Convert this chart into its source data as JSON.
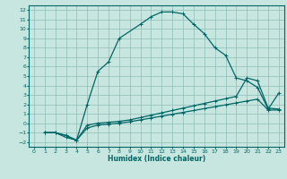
{
  "title": "",
  "xlabel": "Humidex (Indice chaleur)",
  "bg_color": "#c8e6e0",
  "grid_color": "#8bbdb6",
  "line_color": "#006666",
  "xlim": [
    -0.5,
    23.5
  ],
  "ylim": [
    -2.5,
    12.5
  ],
  "xticks": [
    0,
    1,
    2,
    3,
    4,
    5,
    6,
    7,
    8,
    9,
    10,
    11,
    12,
    13,
    14,
    15,
    16,
    17,
    18,
    19,
    20,
    21,
    22,
    23
  ],
  "yticks": [
    -2,
    -1,
    0,
    1,
    2,
    3,
    4,
    5,
    6,
    7,
    8,
    9,
    10,
    11,
    12
  ],
  "curve1_x": [
    1,
    2,
    3,
    4,
    5,
    6,
    7,
    8,
    10,
    11,
    12,
    13,
    14,
    15,
    16,
    17,
    18,
    19,
    20,
    21,
    22,
    23
  ],
  "curve1_y": [
    -1,
    -1,
    -1.5,
    -1.8,
    2,
    5.5,
    6.5,
    9.0,
    10.5,
    11.3,
    11.8,
    11.8,
    11.6,
    10.5,
    9.5,
    8.0,
    7.2,
    4.8,
    4.5,
    3.8,
    1.5,
    3.2
  ],
  "curve2_x": [
    1,
    2,
    3,
    4,
    5,
    6,
    7,
    8,
    9,
    10,
    11,
    12,
    13,
    14,
    15,
    16,
    17,
    18,
    19,
    20,
    21,
    22,
    23
  ],
  "curve2_y": [
    -1,
    -1,
    -1.3,
    -1.8,
    -0.2,
    0.0,
    0.1,
    0.2,
    0.35,
    0.6,
    0.85,
    1.1,
    1.35,
    1.6,
    1.85,
    2.1,
    2.35,
    2.6,
    2.85,
    4.8,
    4.5,
    1.6,
    1.5
  ],
  "curve3_x": [
    1,
    2,
    3,
    4,
    5,
    6,
    7,
    8,
    9,
    10,
    11,
    12,
    13,
    14,
    15,
    16,
    17,
    18,
    19,
    20,
    21,
    22,
    23
  ],
  "curve3_y": [
    -1,
    -1,
    -1.3,
    -1.8,
    -0.5,
    -0.2,
    -0.1,
    0.0,
    0.15,
    0.35,
    0.55,
    0.75,
    0.95,
    1.15,
    1.35,
    1.55,
    1.75,
    1.95,
    2.15,
    2.35,
    2.55,
    1.4,
    1.4
  ]
}
